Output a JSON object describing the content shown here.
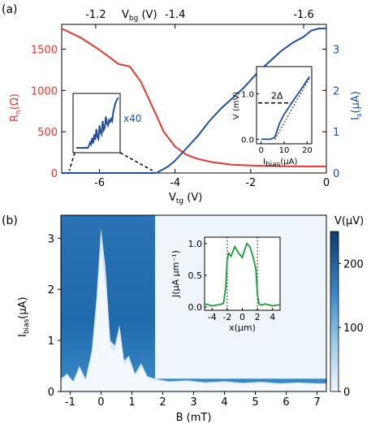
{
  "colors": {
    "red": "#e8372f",
    "blue": "#1f4fa3",
    "green": "#1a9c3a",
    "heat_dark": "#0d3a6e",
    "heat_light": "#eef6fc"
  },
  "chart_data": [
    {
      "id": "a",
      "type": "line",
      "panel_label": "(a)",
      "xlabel_main": "V",
      "xlabel_sub": "tg",
      "xlabel_unit": " (V)",
      "xlim": [
        -7,
        0
      ],
      "x_ticks": [
        "-6",
        "-4",
        "-2",
        "0"
      ],
      "top_axis": {
        "label_main": "V",
        "label_sub": "bg",
        "label_unit": " (V)",
        "ticks": [
          "-1.2",
          "-1.4",
          "-1.6"
        ],
        "tick_x_tg": [
          -6.1,
          -4.0,
          -0.6
        ]
      },
      "left_axis": {
        "label_main": "R",
        "label_sub": "n",
        "label_unit": "(Ω)",
        "ylim": [
          0,
          1800
        ],
        "ticks": [
          "0",
          "500",
          "1000",
          "1500"
        ],
        "color": "#e8372f"
      },
      "right_axis": {
        "label_main": "I",
        "label_sub": "s",
        "label_unit": "(μA)",
        "ylim": [
          0,
          3.6
        ],
        "ticks": [
          "0",
          "1",
          "2",
          "3"
        ],
        "color": "#1f4fa3"
      },
      "series": [
        {
          "axis": "left",
          "color": "#e8372f",
          "x": [
            -7,
            -6.5,
            -6.0,
            -5.7,
            -5.5,
            -5.2,
            -4.9,
            -4.6,
            -4.3,
            -4.0,
            -3.7,
            -3.4,
            -3.0,
            -2.5,
            -2.0,
            -1.5,
            -1.0,
            -0.5,
            0
          ],
          "y": [
            1750,
            1640,
            1490,
            1390,
            1320,
            1290,
            1100,
            800,
            500,
            320,
            220,
            170,
            130,
            100,
            90,
            85,
            82,
            80,
            80
          ]
        },
        {
          "axis": "right",
          "color": "#1f4fa3",
          "x": [
            -7,
            -5.0,
            -4.5,
            -4.2,
            -4.0,
            -3.7,
            -3.4,
            -3.1,
            -2.8,
            -2.5,
            -2.2,
            -2.0,
            -1.8,
            -1.5,
            -1.2,
            -0.9,
            -0.6,
            -0.4,
            -0.2,
            0
          ],
          "y": [
            0,
            0,
            0,
            0.15,
            0.3,
            0.6,
            0.9,
            1.25,
            1.55,
            1.8,
            2.05,
            2.25,
            2.45,
            2.7,
            2.95,
            3.15,
            3.3,
            3.45,
            3.5,
            3.5
          ]
        }
      ],
      "inset_zoom": {
        "label": "x40",
        "x": [
          0,
          1,
          2,
          3,
          4,
          5,
          6,
          7,
          8,
          9,
          10,
          11,
          12,
          13,
          14,
          15,
          16,
          17,
          18,
          19,
          20,
          21,
          22,
          23,
          24,
          25,
          26,
          27,
          28,
          29,
          30,
          31,
          32,
          33,
          34,
          35,
          36,
          37,
          38,
          39,
          40
        ],
        "y": [
          0,
          0,
          0,
          0,
          0,
          0,
          0,
          0,
          0,
          0,
          0,
          0,
          0.05,
          0.12,
          0.08,
          0.22,
          0.1,
          0.3,
          0.18,
          0.42,
          0.25,
          0.2,
          0.5,
          0.35,
          0.3,
          0.6,
          0.4,
          0.45,
          0.7,
          0.55,
          0.5,
          0.62,
          0.58,
          0.65,
          0.6,
          0.8,
          0.9,
          1.0,
          1.05,
          1.1,
          1.12
        ]
      },
      "inset_iv": {
        "xlabel_main": "I",
        "xlabel_sub": "bias",
        "xlabel_unit": "(μA)",
        "ylabel": "V (mV)",
        "x_ticks": [
          "0",
          "10",
          "20"
        ],
        "y_ticks": [
          "0.0",
          "1.0"
        ],
        "xlim": [
          -2,
          22
        ],
        "ylim": [
          -0.1,
          1.6
        ],
        "gap_label": "2Δ",
        "x": [
          0,
          2,
          4,
          5,
          6,
          7,
          8,
          10,
          12,
          14,
          16,
          18,
          20,
          21
        ],
        "y": [
          0,
          0,
          0,
          0.02,
          0.05,
          0.2,
          0.35,
          0.55,
          0.7,
          0.85,
          1.0,
          1.15,
          1.3,
          1.38
        ]
      }
    },
    {
      "id": "b",
      "type": "heatmap",
      "panel_label": "(b)",
      "xlabel": "B (mT)",
      "ylabel_main": "I",
      "ylabel_sub": "bias",
      "ylabel_unit": "(μA)",
      "xlim": [
        -1.3,
        7.3
      ],
      "ylim": [
        0,
        3.45
      ],
      "x_ticks": [
        "-1",
        "0",
        "1",
        "2",
        "3",
        "4",
        "5",
        "6",
        "7"
      ],
      "y_ticks": [
        "0",
        "1",
        "2",
        "3"
      ],
      "colorbar": {
        "label": "V(μV)",
        "ticks": [
          "0",
          "100",
          "200"
        ],
        "range": [
          0,
          250
        ]
      },
      "pattern": {
        "Ic_x": [
          -1.3,
          -1.1,
          -0.9,
          -0.7,
          -0.5,
          -0.3,
          -0.15,
          0,
          0.15,
          0.3,
          0.45,
          0.6,
          0.75,
          0.9,
          1.1,
          1.3,
          1.5,
          1.75,
          2.2,
          2.8,
          3.4,
          4.0,
          4.6,
          5.2,
          5.8,
          6.4,
          7.0,
          7.3
        ],
        "Ic_y": [
          0.25,
          0.35,
          0.2,
          0.5,
          0.25,
          0.8,
          1.8,
          3.2,
          2.4,
          1.0,
          0.9,
          1.3,
          0.6,
          0.7,
          0.35,
          0.55,
          0.3,
          0.25,
          0.2,
          0.22,
          0.18,
          0.2,
          0.17,
          0.19,
          0.16,
          0.18,
          0.16,
          0.16
        ]
      },
      "inset": {
        "xlabel": "x(μm)",
        "ylabel": "J(μA μm⁻¹)",
        "x_ticks": [
          "-4",
          "-2",
          "0",
          "2",
          "4"
        ],
        "y_ticks": [
          "0.0",
          "0.5",
          "1.0"
        ],
        "xlim": [
          -5,
          5
        ],
        "ylim": [
          -0.05,
          1.1
        ],
        "x": [
          -5,
          -4,
          -3,
          -2.5,
          -2.2,
          -2.0,
          -1.8,
          -1.5,
          -1.0,
          -0.5,
          0,
          0.3,
          0.6,
          1.0,
          1.4,
          1.8,
          2.0,
          2.2,
          2.6,
          3,
          4,
          5
        ],
        "y": [
          0.05,
          0.02,
          0.04,
          0.06,
          0.3,
          0.75,
          0.85,
          0.8,
          0.95,
          0.85,
          0.78,
          0.9,
          1.0,
          0.95,
          0.8,
          0.6,
          0.2,
          0.05,
          0.03,
          0.05,
          0.02,
          0.04
        ],
        "dotted_x": [
          -2,
          2
        ]
      }
    }
  ]
}
